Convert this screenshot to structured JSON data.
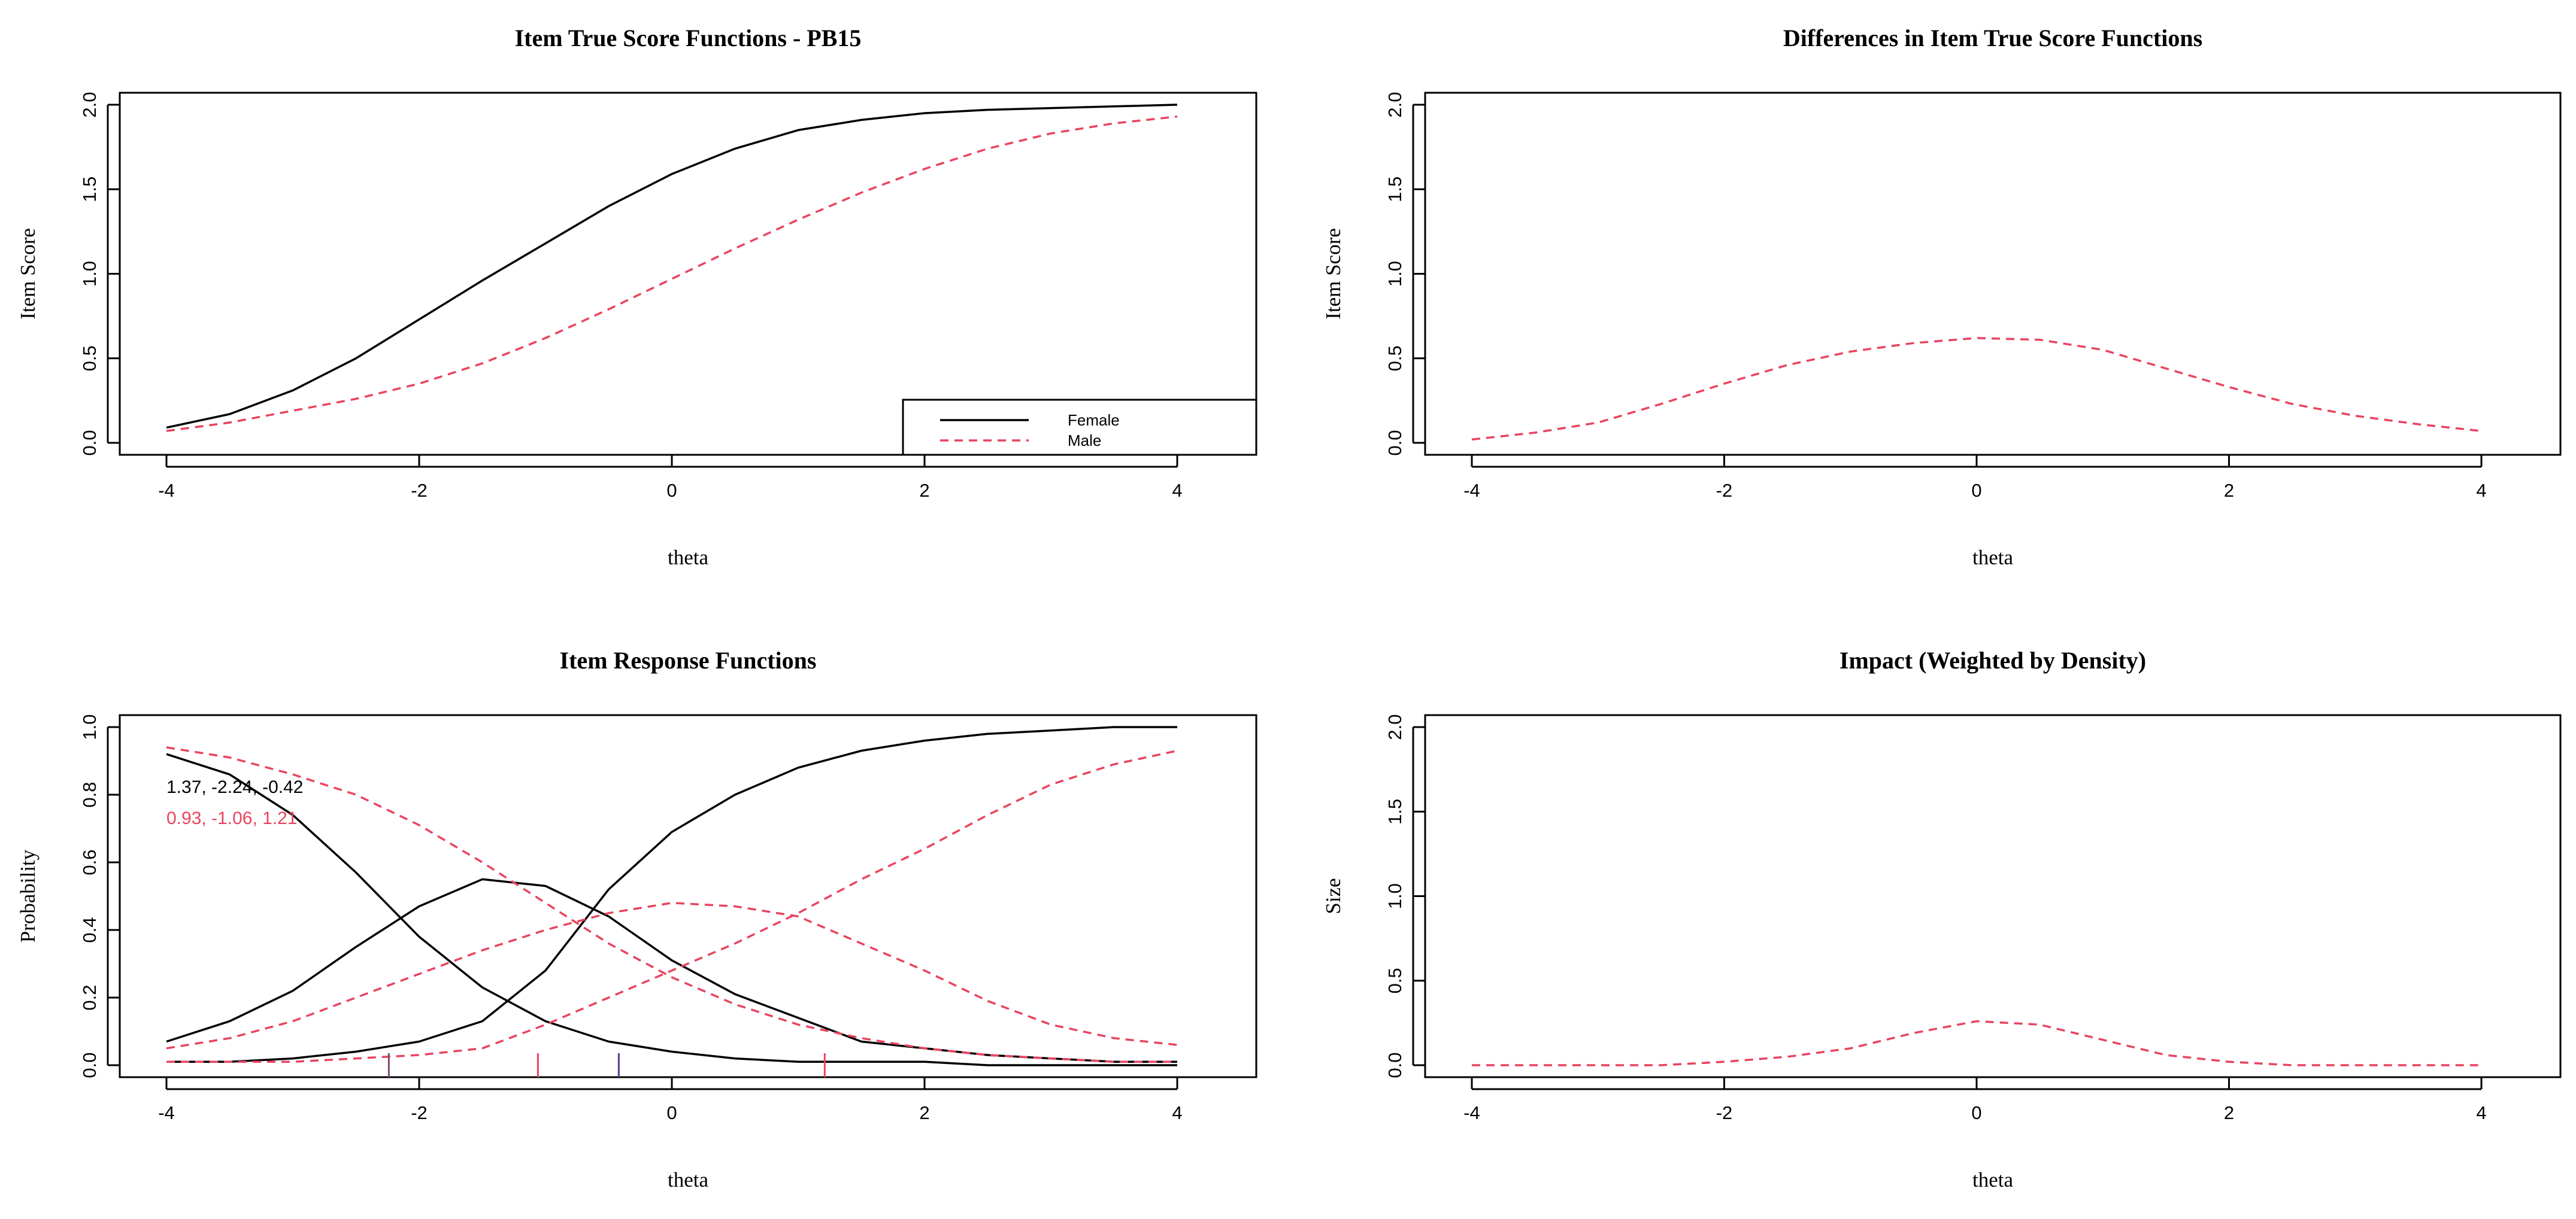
{
  "chart_data": [
    {
      "type": "line",
      "title": "Item True Score Functions - PB15",
      "xlabel": "theta",
      "ylabel": "Item Score",
      "xlim": [
        -4,
        4
      ],
      "ylim": [
        0,
        2
      ],
      "xticks": [
        "-4",
        "-2",
        "0",
        "2",
        "4"
      ],
      "yticks": [
        "0.0",
        "0.5",
        "1.0",
        "1.5",
        "2.0"
      ],
      "legend_position": "bottom-right",
      "x": [
        -4,
        -3.5,
        -3,
        -2.5,
        -2,
        -1.5,
        -1,
        -0.5,
        0,
        0.5,
        1,
        1.5,
        2,
        2.5,
        3,
        3.5,
        4
      ],
      "series": [
        {
          "name": "Female",
          "color": "#000000",
          "dash": "solid",
          "values": [
            0.09,
            0.17,
            0.31,
            0.5,
            0.73,
            0.96,
            1.18,
            1.4,
            1.59,
            1.74,
            1.85,
            1.91,
            1.95,
            1.97,
            1.98,
            1.99,
            2.0
          ]
        },
        {
          "name": "Male",
          "color": "#e8445f",
          "dash": "dashed",
          "values": [
            0.07,
            0.12,
            0.19,
            0.26,
            0.35,
            0.47,
            0.62,
            0.79,
            0.97,
            1.15,
            1.32,
            1.48,
            1.62,
            1.74,
            1.83,
            1.89,
            1.93
          ]
        }
      ]
    },
    {
      "type": "line",
      "title": "Differences in Item True Score Functions",
      "xlabel": "theta",
      "ylabel": "Item Score",
      "xlim": [
        -4,
        4
      ],
      "ylim": [
        0,
        2
      ],
      "xticks": [
        "-4",
        "-2",
        "0",
        "2",
        "4"
      ],
      "yticks": [
        "0.0",
        "0.5",
        "1.0",
        "1.5",
        "2.0"
      ],
      "x": [
        -4,
        -3.5,
        -3,
        -2.5,
        -2,
        -1.5,
        -1,
        -0.5,
        0,
        0.5,
        1,
        1.5,
        2,
        2.5,
        3,
        3.5,
        4
      ],
      "series": [
        {
          "color": "#e8445f",
          "dash": "dashed",
          "values": [
            0.02,
            0.06,
            0.12,
            0.23,
            0.35,
            0.46,
            0.54,
            0.59,
            0.62,
            0.61,
            0.55,
            0.44,
            0.33,
            0.23,
            0.16,
            0.11,
            0.07
          ]
        }
      ]
    },
    {
      "type": "line",
      "title": "Item Response Functions",
      "xlabel": "theta",
      "ylabel": "Probability",
      "xlim": [
        -4,
        4
      ],
      "ylim": [
        0,
        1
      ],
      "xticks": [
        "-4",
        "-2",
        "0",
        "2",
        "4"
      ],
      "yticks": [
        "0.0",
        "0.2",
        "0.4",
        "0.6",
        "0.8",
        "1.0"
      ],
      "annotations": [
        {
          "text": "1.37, -2.24, -0.42",
          "color": "#000000"
        },
        {
          "text": "0.93, -1.06, 1.21",
          "color": "#e8445f"
        }
      ],
      "rug_marks": [
        {
          "x": -2.24,
          "color": "#7a4a7a"
        },
        {
          "x": -1.06,
          "color": "#e8445f"
        },
        {
          "x": -0.42,
          "color": "#5a3a8a"
        },
        {
          "x": 1.21,
          "color": "#e8445f"
        }
      ],
      "x": [
        -4,
        -3.5,
        -3,
        -2.5,
        -2,
        -1.5,
        -1,
        -0.5,
        0,
        0.5,
        1,
        1.5,
        2,
        2.5,
        3,
        3.5,
        4
      ],
      "series": [
        {
          "name": "Female P0",
          "color": "#000000",
          "dash": "solid",
          "values": [
            0.92,
            0.86,
            0.74,
            0.57,
            0.38,
            0.23,
            0.13,
            0.07,
            0.04,
            0.02,
            0.01,
            0.01,
            0.01,
            0.0,
            0.0,
            0.0,
            0.0
          ]
        },
        {
          "name": "Female P1",
          "color": "#000000",
          "dash": "solid",
          "values": [
            0.07,
            0.13,
            0.22,
            0.35,
            0.47,
            0.55,
            0.53,
            0.44,
            0.31,
            0.21,
            0.14,
            0.07,
            0.05,
            0.03,
            0.02,
            0.01,
            0.01
          ]
        },
        {
          "name": "Female P2",
          "color": "#000000",
          "dash": "solid",
          "values": [
            0.01,
            0.01,
            0.02,
            0.04,
            0.07,
            0.13,
            0.28,
            0.52,
            0.69,
            0.8,
            0.88,
            0.93,
            0.96,
            0.98,
            0.99,
            1.0,
            1.0
          ]
        },
        {
          "name": "Male P0",
          "color": "#e8445f",
          "dash": "dashed",
          "values": [
            0.94,
            0.91,
            0.86,
            0.8,
            0.71,
            0.6,
            0.48,
            0.36,
            0.26,
            0.18,
            0.12,
            0.08,
            0.05,
            0.03,
            0.02,
            0.01,
            0.01
          ]
        },
        {
          "name": "Male P1",
          "color": "#e8445f",
          "dash": "dashed",
          "values": [
            0.05,
            0.08,
            0.13,
            0.2,
            0.27,
            0.34,
            0.4,
            0.45,
            0.48,
            0.47,
            0.44,
            0.36,
            0.28,
            0.19,
            0.12,
            0.08,
            0.06
          ]
        },
        {
          "name": "Male P2",
          "color": "#e8445f",
          "dash": "dashed",
          "values": [
            0.01,
            0.01,
            0.01,
            0.02,
            0.03,
            0.05,
            0.12,
            0.2,
            0.28,
            0.36,
            0.45,
            0.55,
            0.64,
            0.74,
            0.83,
            0.89,
            0.93
          ]
        }
      ]
    },
    {
      "type": "line",
      "title": "Impact (Weighted by Density)",
      "xlabel": "theta",
      "ylabel": "Size",
      "xlim": [
        -4,
        4
      ],
      "ylim": [
        0,
        2
      ],
      "xticks": [
        "-4",
        "-2",
        "0",
        "2",
        "4"
      ],
      "yticks": [
        "0.0",
        "0.5",
        "1.0",
        "1.5",
        "2.0"
      ],
      "x": [
        -4,
        -3.5,
        -3,
        -2.5,
        -2,
        -1.5,
        -1,
        -0.5,
        0,
        0.5,
        1,
        1.5,
        2,
        2.5,
        3,
        3.5,
        4
      ],
      "series": [
        {
          "color": "#e8445f",
          "dash": "dashed",
          "values": [
            0.0,
            0.0,
            0.0,
            0.0,
            0.02,
            0.05,
            0.1,
            0.19,
            0.26,
            0.24,
            0.15,
            0.06,
            0.02,
            0.0,
            0.0,
            0.0,
            0.0
          ]
        }
      ]
    }
  ]
}
